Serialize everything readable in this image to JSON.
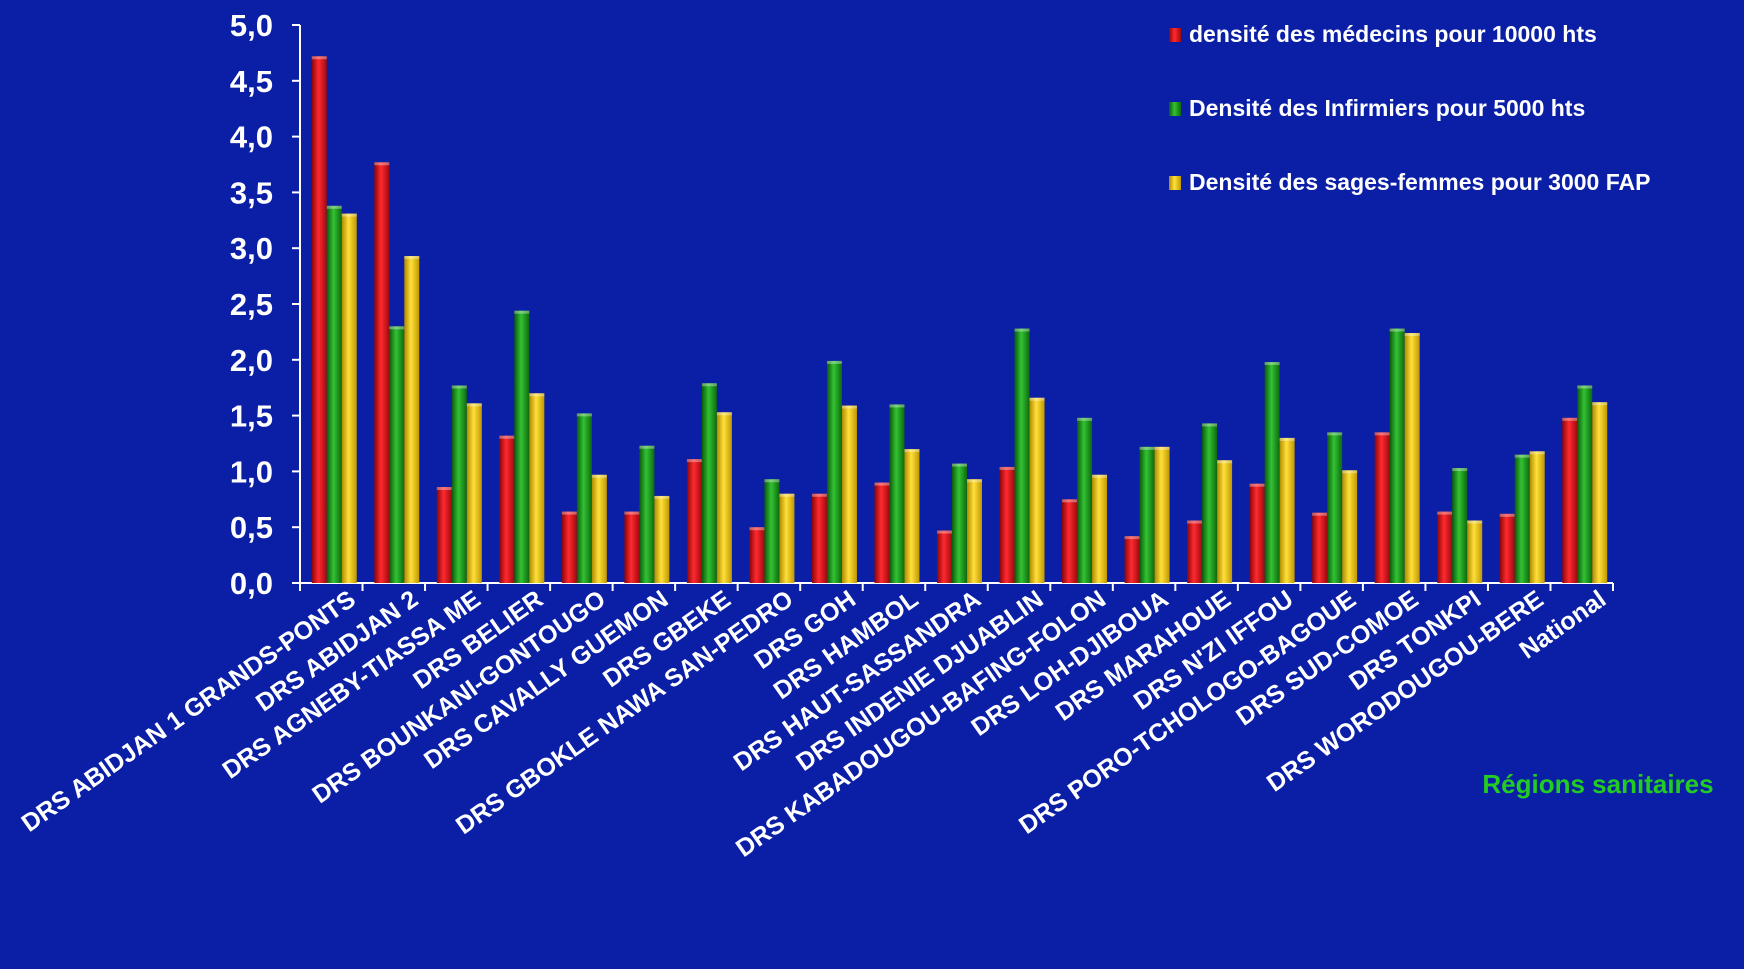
{
  "chart_data": {
    "type": "bar",
    "title": "",
    "xlabel": "Régions sanitaires",
    "ylabel": "",
    "ylim": [
      0,
      5
    ],
    "yticks": [
      "0,0",
      "0,5",
      "1,0",
      "1,5",
      "2,0",
      "2,5",
      "3,0",
      "3,5",
      "4,0",
      "4,5",
      "5,0"
    ],
    "grid": false,
    "legend_position": "top-right",
    "categories": [
      "DRS ABIDJAN 1 GRANDS-PONTS",
      "DRS ABIDJAN 2",
      "DRS AGNEBY-TIASSA ME",
      "DRS BELIER",
      "DRS BOUNKANI-GONTOUGO",
      "DRS CAVALLY GUEMON",
      "DRS GBEKE",
      "DRS GBOKLE NAWA SAN-PEDRO",
      "DRS GOH",
      "DRS HAMBOL",
      "DRS HAUT-SASSANDRA",
      "DRS INDENIE DJUABLIN",
      "DRS KABADOUGOU-BAFING-FOLON",
      "DRS LOH-DJIBOUA",
      "DRS MARAHOUE",
      "DRS N'ZI IFFOU",
      "DRS PORO-TCHOLOGO-BAGOUE",
      "DRS SUD-COMOE",
      "DRS TONKPI",
      "DRS WORODOUGOU-BERE",
      "National"
    ],
    "series": [
      {
        "name": "densité des  médecins pour 10000 hts",
        "color": "#e8141c",
        "values": [
          4.72,
          3.77,
          0.86,
          1.32,
          0.64,
          0.64,
          1.11,
          0.5,
          0.8,
          0.9,
          0.47,
          1.04,
          0.75,
          0.42,
          0.56,
          0.89,
          0.63,
          1.35,
          0.64,
          0.62,
          1.48
        ]
      },
      {
        "name": "Densité des Infirmiers pour 5000 hts",
        "color": "#1fa51f",
        "values": [
          3.38,
          2.3,
          1.77,
          2.44,
          1.52,
          1.23,
          1.79,
          0.93,
          1.99,
          1.6,
          1.07,
          2.28,
          1.48,
          1.22,
          1.43,
          1.98,
          1.35,
          2.28,
          1.03,
          1.15,
          1.77
        ]
      },
      {
        "name": "Densité des sages-femmes pour 3000 FAP",
        "color": "#f2c80a",
        "values": [
          3.31,
          2.93,
          1.61,
          1.7,
          0.97,
          0.78,
          1.53,
          0.8,
          1.59,
          1.2,
          0.93,
          1.66,
          0.97,
          1.22,
          1.1,
          1.3,
          1.01,
          2.24,
          0.56,
          1.18,
          1.62
        ]
      }
    ]
  }
}
